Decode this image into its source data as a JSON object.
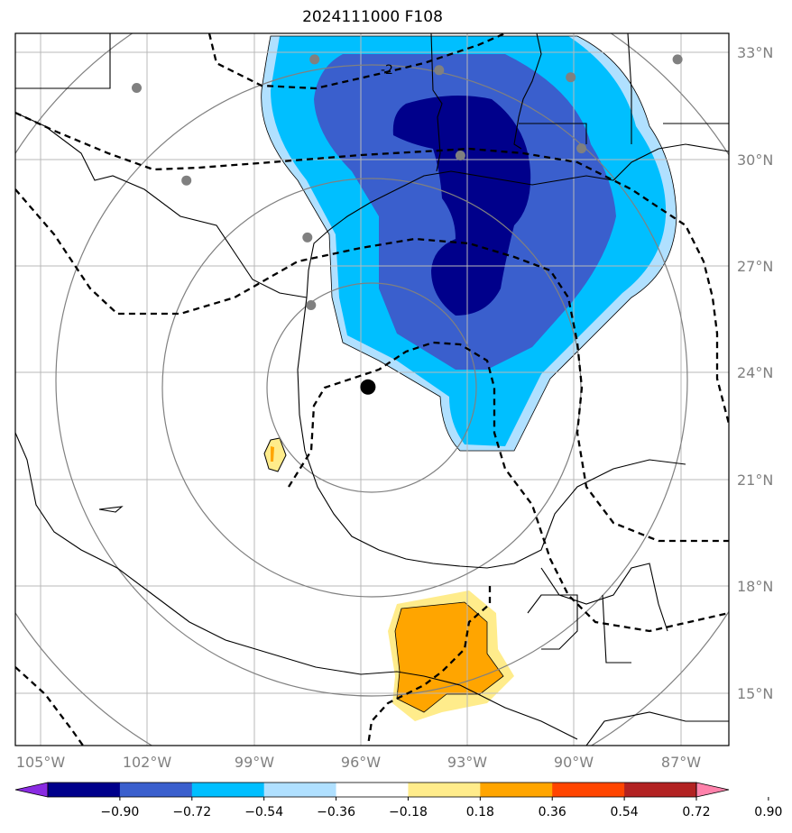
{
  "title": "2024111000 F108",
  "map": {
    "lon_labels": [
      "105°W",
      "102°W",
      "99°W",
      "96°W",
      "93°W",
      "90°W",
      "87°W"
    ],
    "lat_labels": [
      "33°N",
      "30°N",
      "27°N",
      "24°N",
      "21°N",
      "18°N",
      "15°N"
    ],
    "storm_center": {
      "lon": -95.8,
      "lat": 23.6
    },
    "contour_label": "-2",
    "stations": [
      {
        "lon": -102.3,
        "lat": 32.0
      },
      {
        "lon": -97.3,
        "lat": 32.8
      },
      {
        "lon": -93.8,
        "lat": 32.5
      },
      {
        "lon": -90.1,
        "lat": 32.3
      },
      {
        "lon": -87.1,
        "lat": 32.8
      },
      {
        "lon": -100.9,
        "lat": 29.4
      },
      {
        "lon": -93.2,
        "lat": 30.1
      },
      {
        "lon": -89.8,
        "lat": 30.3
      },
      {
        "lon": -97.5,
        "lat": 27.8
      },
      {
        "lon": -97.4,
        "lat": 25.9
      }
    ]
  },
  "colorbar": {
    "colors": [
      "#8a2be2",
      "#00008b",
      "#3a5fcd",
      "#00bfff",
      "#b0e0ff",
      "#ffffff",
      "#ffec8b",
      "#ffa500",
      "#ff4500",
      "#b22222",
      "#ff82ab"
    ],
    "tick_labels": [
      "−0.90",
      "−0.72",
      "−0.54",
      "−0.36",
      "−0.18",
      "0.18",
      "0.36",
      "0.54",
      "0.72",
      "0.90"
    ]
  }
}
